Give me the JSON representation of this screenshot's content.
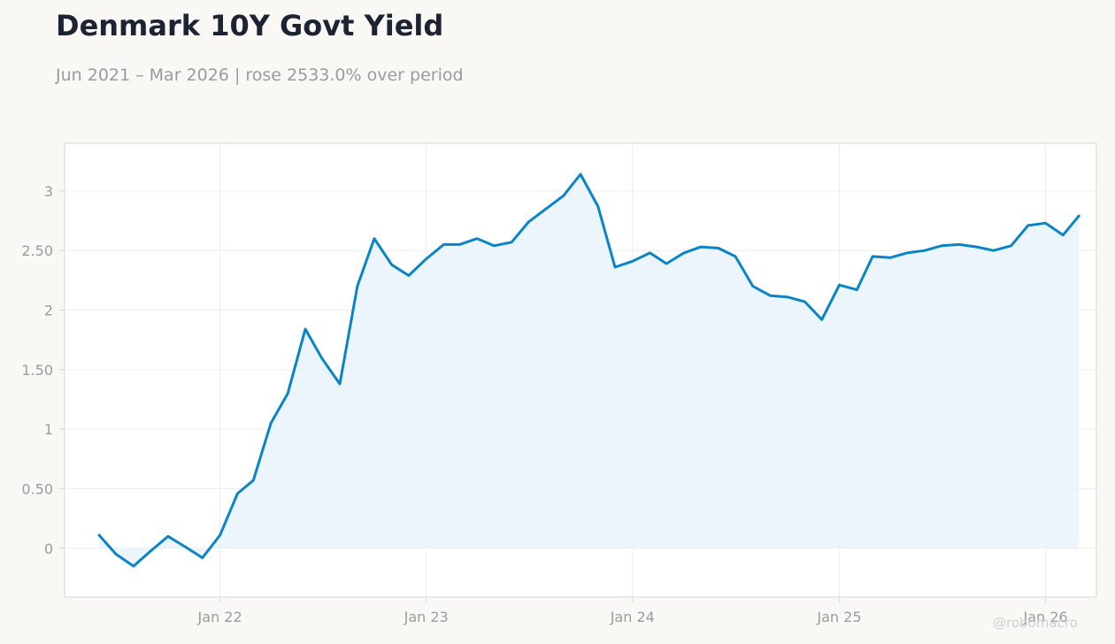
{
  "header": {
    "title": "Denmark 10Y Govt Yield",
    "subtitle": "Jun 2021 – Mar 2026 | rose 2533.0% over period"
  },
  "watermark": "@robomacro",
  "colors": {
    "line": "#0a84c6",
    "fill": "#e9f3fb",
    "grid": "#ededed",
    "axis": "#d8d6cf",
    "tick_text": "#9b9b9b"
  },
  "chart_data": {
    "type": "area",
    "title": "Denmark 10Y Govt Yield",
    "xlabel": "",
    "ylabel": "",
    "grid": true,
    "xlim": [
      "2021-04-01",
      "2026-04-01"
    ],
    "ylim": [
      -0.41,
      3.4
    ],
    "yticks": [
      0,
      0.5,
      1,
      1.5,
      2,
      2.5,
      3
    ],
    "ytick_labels": [
      "0",
      "0.50",
      "1",
      "1.50",
      "2",
      "2.50",
      "3"
    ],
    "xticks": [
      "2022-01-01",
      "2023-01-01",
      "2024-01-01",
      "2025-01-01",
      "2026-01-01"
    ],
    "xtick_labels": [
      "Jan 22",
      "Jan 23",
      "Jan 24",
      "Jan 25",
      "Jan 26"
    ],
    "series": [
      {
        "x": [
          "2021-06-01",
          "2021-07-01",
          "2021-08-01",
          "2021-09-01",
          "2021-10-01",
          "2021-11-01",
          "2021-12-01",
          "2022-01-01",
          "2022-02-01",
          "2022-03-01",
          "2022-04-01",
          "2022-05-01",
          "2022-06-01",
          "2022-07-01",
          "2022-08-01",
          "2022-09-01",
          "2022-10-01",
          "2022-11-01",
          "2022-12-01",
          "2023-01-01",
          "2023-02-01",
          "2023-03-01",
          "2023-04-01",
          "2023-05-01",
          "2023-06-01",
          "2023-07-01",
          "2023-08-01",
          "2023-09-01",
          "2023-10-01",
          "2023-11-01",
          "2023-12-01",
          "2024-01-01",
          "2024-02-01",
          "2024-03-01",
          "2024-04-01",
          "2024-05-01",
          "2024-06-01",
          "2024-07-01",
          "2024-08-01",
          "2024-09-01",
          "2024-10-01",
          "2024-11-01",
          "2024-12-01",
          "2025-01-01",
          "2025-02-01",
          "2025-03-01",
          "2025-04-01",
          "2025-05-01",
          "2025-06-01",
          "2025-07-01",
          "2025-08-01",
          "2025-09-01",
          "2025-10-01",
          "2025-11-01",
          "2025-12-01",
          "2026-01-01",
          "2026-02-01",
          "2026-03-01"
        ],
        "values": [
          0.11,
          -0.05,
          -0.15,
          -0.02,
          0.1,
          0.01,
          -0.08,
          0.11,
          0.46,
          0.57,
          1.05,
          1.3,
          1.84,
          1.59,
          1.38,
          2.2,
          2.6,
          2.38,
          2.29,
          2.43,
          2.55,
          2.55,
          2.6,
          2.54,
          2.57,
          2.74,
          2.85,
          2.96,
          3.14,
          2.87,
          2.36,
          2.41,
          2.48,
          2.39,
          2.48,
          2.53,
          2.52,
          2.45,
          2.2,
          2.12,
          2.11,
          2.07,
          1.92,
          2.21,
          2.17,
          2.45,
          2.44,
          2.48,
          2.5,
          2.54,
          2.55,
          2.53,
          2.5,
          2.54,
          2.71,
          2.73,
          2.63,
          2.79
        ]
      }
    ]
  }
}
